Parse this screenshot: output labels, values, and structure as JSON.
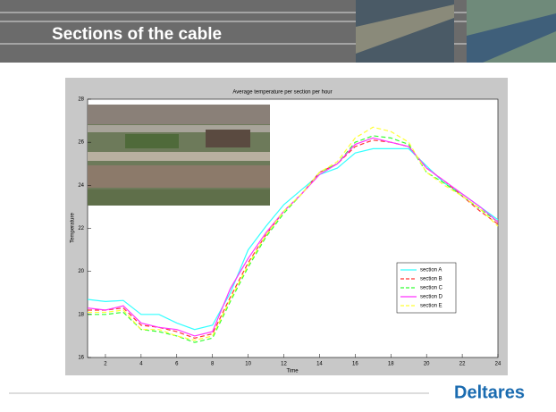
{
  "slide_title": "Sections of the cable",
  "logo": "Deltares",
  "chart_data": {
    "type": "line",
    "title": "Average temperature per section per hour",
    "xlabel": "Time",
    "ylabel": "Temperature",
    "x": [
      1,
      2,
      3,
      4,
      5,
      6,
      7,
      8,
      9,
      10,
      11,
      12,
      13,
      14,
      15,
      16,
      17,
      18,
      19,
      20,
      21,
      22,
      23,
      24
    ],
    "xlim": [
      1,
      24
    ],
    "xticks": [
      2,
      4,
      6,
      8,
      10,
      12,
      14,
      16,
      18,
      20,
      22,
      24
    ],
    "ylim": [
      16,
      28
    ],
    "yticks": [
      16,
      18,
      20,
      22,
      24,
      26,
      28
    ],
    "legend": "lower right",
    "series": [
      {
        "name": "section A",
        "color": "#33ffff",
        "linestyle": "-",
        "values": [
          18.7,
          18.6,
          18.65,
          18.0,
          18.0,
          17.6,
          17.3,
          17.5,
          19.0,
          21.0,
          22.1,
          23.1,
          23.8,
          24.5,
          24.8,
          25.5,
          25.7,
          25.7,
          25.7,
          24.9,
          24.1,
          23.6,
          23.0,
          22.4
        ]
      },
      {
        "name": "section B",
        "color": "#ff3333",
        "linestyle": "--",
        "values": [
          18.2,
          18.2,
          18.3,
          17.5,
          17.4,
          17.2,
          16.9,
          17.1,
          18.8,
          20.4,
          21.7,
          22.8,
          23.6,
          24.6,
          25.0,
          25.8,
          26.1,
          26.0,
          25.8,
          24.8,
          24.2,
          23.5,
          22.8,
          22.2
        ]
      },
      {
        "name": "section C",
        "color": "#33ff33",
        "linestyle": "--",
        "values": [
          18.0,
          18.0,
          18.1,
          17.3,
          17.2,
          17.0,
          16.7,
          16.9,
          18.6,
          20.2,
          21.6,
          22.7,
          23.6,
          24.6,
          25.0,
          26.0,
          26.3,
          26.2,
          25.9,
          24.6,
          24.1,
          23.5,
          22.9,
          22.3
        ]
      },
      {
        "name": "section D",
        "color": "#ff33ff",
        "linestyle": "-",
        "values": [
          18.3,
          18.2,
          18.4,
          17.6,
          17.4,
          17.3,
          17.0,
          17.2,
          19.2,
          20.6,
          21.8,
          22.8,
          23.6,
          24.5,
          25.0,
          25.9,
          26.2,
          26.0,
          25.8,
          24.8,
          24.2,
          23.6,
          23.0,
          22.3
        ]
      },
      {
        "name": "section E",
        "color": "#ffff33",
        "linestyle": "--",
        "values": [
          18.1,
          18.1,
          18.2,
          17.3,
          17.3,
          17.0,
          16.8,
          17.0,
          18.7,
          20.3,
          21.7,
          22.8,
          23.6,
          24.6,
          25.1,
          26.2,
          26.7,
          26.5,
          26.0,
          24.6,
          24.0,
          23.5,
          22.9,
          22.1
        ]
      }
    ]
  }
}
